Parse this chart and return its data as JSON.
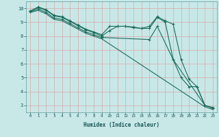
{
  "xlabel": "Humidex (Indice chaleur)",
  "ylabel": "",
  "background_color": "#c8e8e8",
  "grid_color": "#d8b0b0",
  "line_color": "#1a6b5a",
  "xlim": [
    -0.5,
    23.5
  ],
  "ylim": [
    2.5,
    10.5
  ],
  "line1_x": [
    0,
    1,
    2,
    3,
    4,
    5,
    6,
    7,
    8,
    9,
    10,
    11,
    12,
    13,
    14,
    15,
    16,
    17,
    18,
    19,
    20,
    21,
    22,
    23
  ],
  "line1_y": [
    9.8,
    10.1,
    9.9,
    9.5,
    9.4,
    9.1,
    8.8,
    8.5,
    8.3,
    8.1,
    8.7,
    8.7,
    8.7,
    8.65,
    8.55,
    8.7,
    9.4,
    9.1,
    8.85,
    6.3,
    4.9,
    4.35,
    3.0,
    2.85
  ],
  "line2_x": [
    0,
    1,
    2,
    3,
    4,
    5,
    6,
    7,
    8,
    9,
    10,
    11,
    12,
    13,
    14,
    15,
    16,
    17,
    18,
    22,
    23
  ],
  "line2_y": [
    9.8,
    10.05,
    9.85,
    9.45,
    9.35,
    9.05,
    8.75,
    8.45,
    8.25,
    8.0,
    8.4,
    8.7,
    8.7,
    8.6,
    8.55,
    8.55,
    9.35,
    9.0,
    6.3,
    3.0,
    2.8
  ],
  "line3_x": [
    0,
    1,
    2,
    3,
    4,
    5,
    6,
    7,
    8,
    9,
    15,
    16,
    18,
    19,
    20,
    21,
    22,
    23
  ],
  "line3_y": [
    9.75,
    9.95,
    9.7,
    9.3,
    9.2,
    8.9,
    8.6,
    8.3,
    8.1,
    7.9,
    7.75,
    8.7,
    6.3,
    5.0,
    4.35,
    4.35,
    3.0,
    2.8
  ],
  "line4_x": [
    0,
    1,
    2,
    3,
    4,
    5,
    6,
    7,
    8,
    9,
    22,
    23
  ],
  "line4_y": [
    9.7,
    9.85,
    9.6,
    9.2,
    9.1,
    8.8,
    8.5,
    8.2,
    8.0,
    7.8,
    2.9,
    2.7
  ]
}
